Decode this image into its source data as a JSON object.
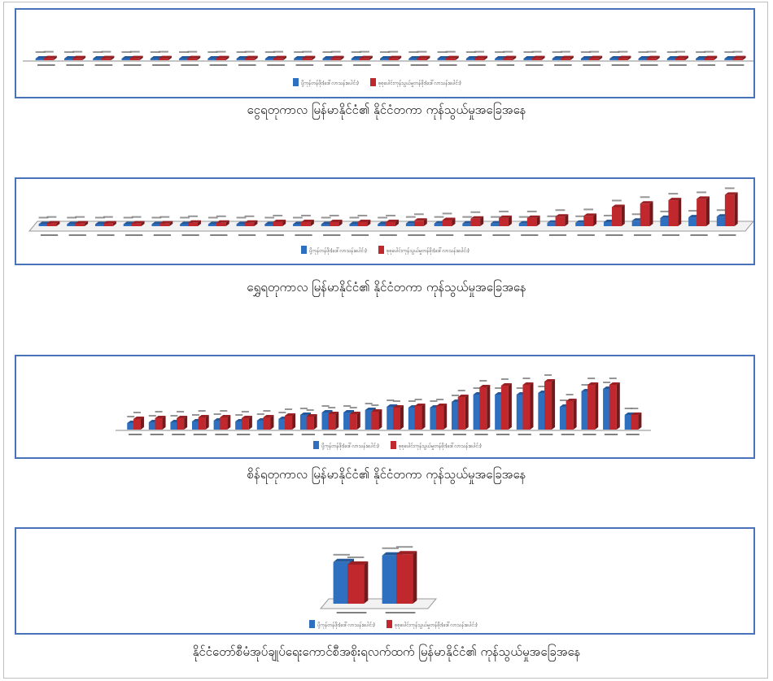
{
  "colors": {
    "export": "#2f6fbf",
    "total": "#c0282d",
    "frame": "#4a72b8"
  },
  "captions": [
    "ငွေရတုကာလ မြန်မာနိုင်ငံ၏ နိုင်ငံတကာ ကုန်သွယ်မှုအခြေအနေ",
    "ရွှေရတုကာလ မြန်မာနိုင်ငံ၏ နိုင်ငံတကာ ကုန်သွယ်မှုအခြေအနေ",
    "စိန်ရတုကာလ မြန်မာနိုင်ငံ၏ နိုင်ငံတကာ ကုန်သွယ်မှုအခြေအနေ",
    "နိုင်ငံတော်စီမံအုပ်ချုပ်ရေးကောင်စီအစိုးရလက်ထက် မြန်မာနိုင်ငံ၏ ကုန်သွယ်မှုအခြေအနေ"
  ],
  "chart_data": [
    {
      "type": "bar",
      "series": [
        {
          "name": "ပို့ကုန်တန်ဖိုး(ဒေါ်လာသန်းပေါင်း)",
          "values": [
            5,
            5,
            5,
            5,
            5,
            5,
            5,
            5,
            5,
            5,
            5,
            5,
            5,
            5,
            5,
            5,
            5,
            5,
            5,
            5,
            5,
            5,
            5,
            5,
            5
          ]
        },
        {
          "name": "စုစုပေါင်းကုန်သွယ်မှုတန်ဖိုး(ဒေါ်လာသန်းပေါင်း)",
          "values": [
            6,
            6,
            6,
            6,
            6,
            6,
            6,
            6,
            6,
            6,
            6,
            6,
            6,
            6,
            6,
            6,
            6,
            6,
            6,
            6,
            6,
            6,
            6,
            6,
            6
          ]
        }
      ],
      "ylim": [
        0,
        100
      ],
      "legend": "bottom-center"
    },
    {
      "type": "bar",
      "series": [
        {
          "name": "ပို့ကုန်တန်ဖိုး(ဒေါ်လာသန်းပေါင်း)",
          "values": [
            3,
            3,
            3,
            3,
            3,
            3,
            3,
            3,
            3,
            3,
            3,
            3,
            3,
            4,
            4,
            4,
            4,
            4,
            5,
            5,
            6,
            8,
            12,
            13,
            14
          ]
        },
        {
          "name": "စုစုပေါင်းကုန်သွယ်မှုတန်ဖိုး(ဒေါ်လာသန်းပေါင်း)",
          "values": [
            4,
            4,
            4,
            4,
            4,
            5,
            5,
            5,
            6,
            6,
            6,
            6,
            6,
            8,
            9,
            11,
            12,
            12,
            14,
            15,
            28,
            33,
            38,
            40,
            46
          ]
        }
      ],
      "ylim": [
        0,
        50
      ],
      "legend": "bottom-center"
    },
    {
      "type": "bar",
      "series": [
        {
          "name": "ပို့ကုန်တန်ဖိုး(ဒေါ်လာသန်းပေါင်း)",
          "values": [
            8,
            9,
            9,
            10,
            11,
            10,
            11,
            13,
            18,
            21,
            21,
            24,
            28,
            27,
            27,
            34,
            43,
            43,
            43,
            45,
            28,
            47,
            50,
            18
          ]
        },
        {
          "name": "စုစုပေါင်းကုန်သွယ်မှုတန်ဖိုး(ဒေါ်လာသန်းပေါင်း)",
          "values": [
            13,
            14,
            14,
            15,
            15,
            14,
            15,
            17,
            16,
            19,
            19,
            22,
            27,
            29,
            29,
            40,
            52,
            54,
            55,
            59,
            35,
            55,
            55,
            18
          ]
        }
      ],
      "ylim": [
        0,
        70
      ],
      "legend": "bottom-center"
    },
    {
      "type": "bar",
      "series": [
        {
          "name": "ပို့ကုန်တန်ဖိုး(ဒေါ်လာသန်းပေါင်း)",
          "values": [
            32,
            37
          ]
        },
        {
          "name": "စုစုပေါင်းကုန်သွယ်မှုတန်ဖိုး(ဒေါ်လာသန်းပေါင်း)",
          "values": [
            30,
            38
          ]
        }
      ],
      "ylim": [
        0,
        45
      ],
      "legend": "bottom-left"
    }
  ]
}
